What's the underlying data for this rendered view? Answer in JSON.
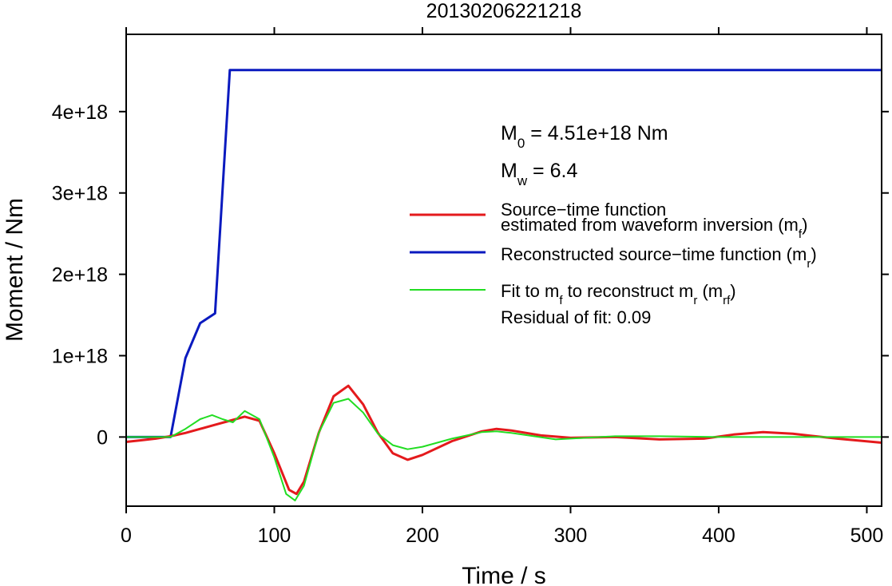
{
  "chart_data": {
    "type": "line",
    "title": "20130206221218",
    "xlabel": "Time / s",
    "ylabel": "Moment / Nm",
    "xlim": [
      0,
      510
    ],
    "ylim": [
      -8.5e+17,
      4.95e+18
    ],
    "xticks": [
      0,
      100,
      200,
      300,
      400,
      500
    ],
    "xtick_labels": [
      "0",
      "100",
      "200",
      "300",
      "400",
      "500"
    ],
    "yticks": [
      0,
      1e+18,
      2e+18,
      3e+18,
      4e+18
    ],
    "ytick_labels": [
      "0",
      "1e+18",
      "2e+18",
      "3e+18",
      "4e+18"
    ],
    "grid": false,
    "legend_position": "right",
    "annotations": {
      "m0": {
        "prefix": "M",
        "sub": "0",
        "text": " = 4.51e+18 Nm"
      },
      "mw": {
        "prefix": "M",
        "sub": "w",
        "text": " = 6.4"
      },
      "residual": "Residual of fit: 0.09"
    },
    "series": [
      {
        "name_parts": [
          {
            "line": 1,
            "t": "Source−time function"
          },
          {
            "line": 2,
            "t": "estimated from waveform inversion (m"
          },
          {
            "line": 2,
            "t": "f",
            "sub": true
          },
          {
            "line": 2,
            "t": ")"
          }
        ],
        "color": "#e41a1c",
        "x": [
          0,
          10,
          20,
          30,
          40,
          50,
          60,
          70,
          80,
          90,
          100,
          110,
          115,
          120,
          130,
          140,
          150,
          160,
          170,
          180,
          190,
          200,
          220,
          240,
          250,
          260,
          280,
          300,
          330,
          360,
          390,
          410,
          430,
          450,
          480,
          510
        ],
        "y": [
          -6e+16,
          -4e+16,
          -2e+16,
          1e+16,
          5e+16,
          1e+17,
          1.5e+17,
          2e+17,
          2.5e+17,
          2e+17,
          -2e+17,
          -6.5e+17,
          -7e+17,
          -5.5e+17,
          5e+16,
          5e+17,
          6.3e+17,
          4e+17,
          5e+16,
          -2e+17,
          -2.8e+17,
          -2.2e+17,
          -5e+16,
          7e+16,
          1e+17,
          8e+16,
          2e+16,
          -1e+16,
          0.0,
          -3e+16,
          -2e+16,
          3e+16,
          6e+16,
          4e+16,
          -2e+16,
          -7e+16
        ]
      },
      {
        "name_parts": [
          {
            "t": "Reconstructed source−time function (m"
          },
          {
            "t": "r",
            "sub": true
          },
          {
            "t": ")"
          }
        ],
        "color": "#0a1abf",
        "x": [
          0,
          30,
          40,
          50,
          60,
          70,
          80,
          200,
          300,
          400,
          510
        ],
        "y": [
          0,
          0,
          9.7e+17,
          1.4e+18,
          1.52e+18,
          4.51e+18,
          4.51e+18,
          4.51e+18,
          4.51e+18,
          4.51e+18,
          4.51e+18
        ]
      },
      {
        "name_parts": [
          {
            "t": "Fit to m"
          },
          {
            "t": "f",
            "sub": true
          },
          {
            "t": " to reconstruct m"
          },
          {
            "t": "r",
            "sub": true
          },
          {
            "t": " (m"
          },
          {
            "t": "rf",
            "sub": true
          },
          {
            "t": ")"
          }
        ],
        "color": "#22dd22",
        "x": [
          0,
          30,
          40,
          50,
          58,
          65,
          72,
          80,
          90,
          100,
          108,
          114,
          120,
          130,
          140,
          150,
          160,
          170,
          180,
          190,
          200,
          220,
          240,
          250,
          260,
          290,
          330,
          360,
          400,
          450,
          510
        ],
        "y": [
          0,
          0,
          1e+17,
          2.2e+17,
          2.7e+17,
          2.2e+17,
          1.8e+17,
          3.2e+17,
          2.2e+17,
          -2.5e+17,
          -7e+17,
          -7.8e+17,
          -6e+17,
          5e+16,
          4.2e+17,
          4.7e+17,
          3e+17,
          4e+16,
          -1e+17,
          -1.5e+17,
          -1.2e+17,
          -2e+16,
          6e+16,
          7e+16,
          5e+16,
          -3e+16,
          1e+16,
          1e+16,
          0.0,
          0.0,
          0.0
        ]
      }
    ]
  }
}
